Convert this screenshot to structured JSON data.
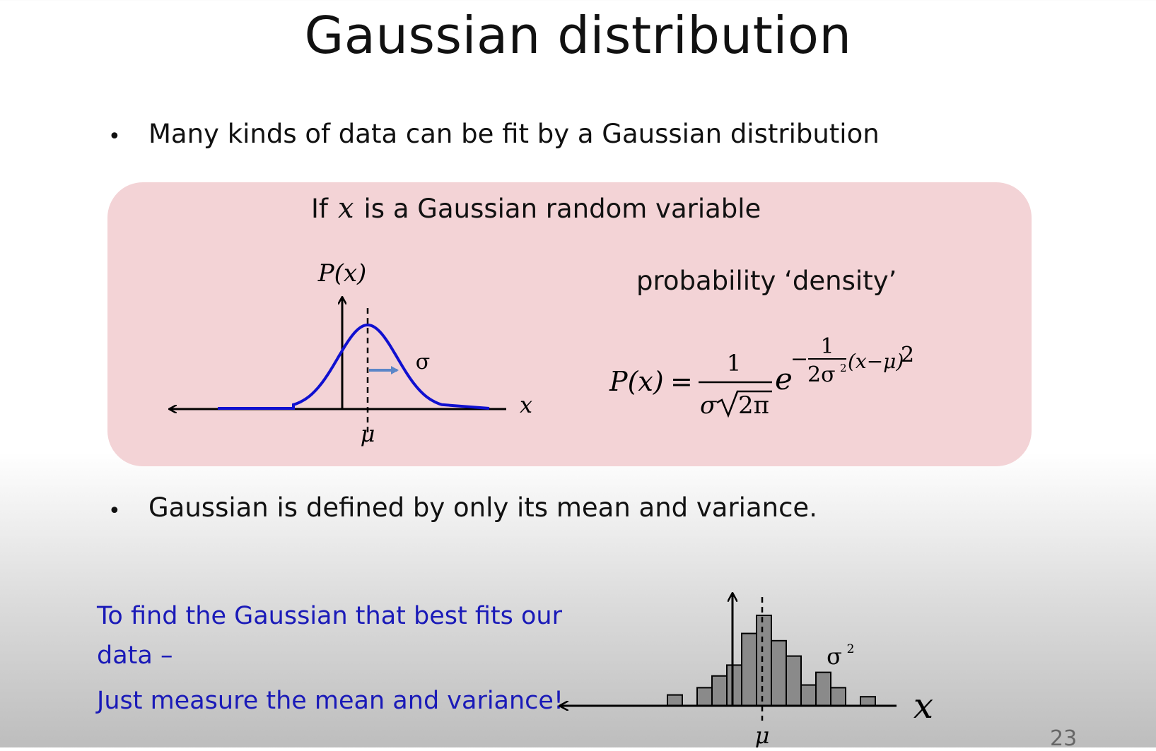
{
  "slide": {
    "title": "Gaussian distribution",
    "bullet1": "Many kinds of data can be fit by a Gaussian distribution",
    "bullet2": "Gaussian is defined by only its mean and variance.",
    "bullet_symbol": "•",
    "page_number": "23"
  },
  "box": {
    "if_prefix": "If",
    "if_var": "x",
    "if_suffix": "is a Gaussian random variable",
    "density_label": "probability ‘density’",
    "curve_plot": {
      "y_label": "P(x)",
      "x_label": "x",
      "mean_label": "μ",
      "sigma_label": "σ",
      "curve_color": "#1010d0",
      "arrow_color": "#5b86c8"
    },
    "formula": {
      "lhs": "P(x)",
      "equals": "=",
      "numerator": "1",
      "denom_sigma": "σ",
      "denom_root": "2π",
      "base": "e",
      "exp_minus": "−",
      "exp_num": "1",
      "exp_den": "2σ",
      "exp_den_sup": "2",
      "exp_body": "(x−μ)",
      "exp_power": "2"
    }
  },
  "footer": {
    "line1": "To find the Gaussian that best fits our",
    "line2": "data –",
    "line3": "Just measure the mean and variance!",
    "text_color": "#1a1ab8"
  },
  "chart_data": {
    "type": "bar",
    "x_label": "x",
    "mean_label": "μ",
    "variance_label": "σ",
    "variance_sup": "2",
    "values": [
      0.12,
      0,
      0.2,
      0.33,
      0.45,
      0.8,
      1.0,
      0.72,
      0.55,
      0.23,
      0.37,
      0.2,
      0,
      0.1
    ],
    "bar_color": "#8a8a8a"
  }
}
